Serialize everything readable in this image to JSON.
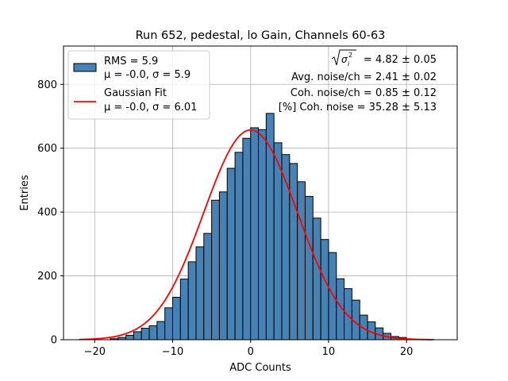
{
  "chart_data": {
    "type": "bar",
    "title": "Run 652, pedestal, lo Gain, Channels 60-63",
    "xlabel": "ADC Counts",
    "ylabel": "Entries",
    "xlim": [
      -24,
      26.5
    ],
    "ylim": [
      0,
      920
    ],
    "xticks": [
      -20,
      -10,
      0,
      10,
      20
    ],
    "xtick_labels": [
      "−20",
      "−10",
      "0",
      "10",
      "20"
    ],
    "yticks": [
      0,
      200,
      400,
      600,
      800
    ],
    "ytick_labels": [
      "0",
      "200",
      "400",
      "600",
      "800"
    ],
    "grid": true,
    "bins": {
      "start": -18,
      "width": 1,
      "counts": [
        3,
        7,
        14,
        25,
        36,
        44,
        57,
        100,
        133,
        190,
        244,
        291,
        333,
        437,
        463,
        537,
        587,
        631,
        664,
        658,
        709,
        617,
        580,
        552,
        495,
        449,
        381,
        314,
        273,
        191,
        160,
        124,
        77,
        56,
        37,
        20,
        10,
        7,
        2,
        1
      ]
    },
    "gaussian_fit": {
      "mu": -0.0,
      "sigma": 6.01,
      "amplitude": 657,
      "x_range": [
        -22,
        23.5
      ]
    },
    "colors": {
      "bar_fill": "#4682b4",
      "bar_edge": "#000000",
      "fit_line": "#ff0000",
      "grid": "#b0b0b0"
    },
    "legend": {
      "location": "top-left",
      "entries": [
        {
          "line1": "RMS = 5.9",
          "line2": "μ = -0.0, σ = 5.9",
          "marker": "patch"
        },
        {
          "line1": "Gaussian Fit",
          "line2": "μ = -0.0, σ = 6.01",
          "marker": "line"
        }
      ]
    },
    "annotations": {
      "sqrt_value": "= 4.82 ± 0.05",
      "avg_noise": "Avg. noise/ch = 2.41 ± 0.02",
      "coh_noise": "Coh. noise/ch = 0.85 ± 0.12",
      "pct_coh_noise": "[%] Coh. noise = 35.28 ± 5.13"
    }
  }
}
